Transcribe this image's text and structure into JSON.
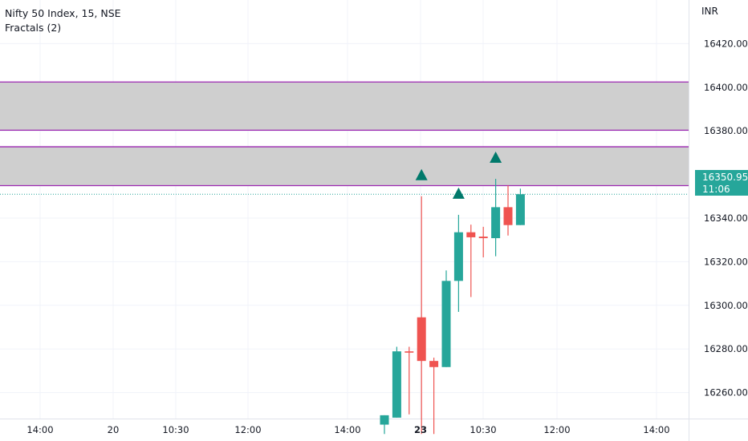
{
  "header": {
    "symbol_line": "Nifty 50 Index, 15, NSE",
    "indicator_line": "Fractals (2)"
  },
  "currency": "INR",
  "last_price_tag": {
    "price": "16350.95",
    "countdown": "11:06"
  },
  "colors": {
    "up": "#26a69a",
    "down": "#ef5350",
    "fractal": "#00796b",
    "zone_fill": "#cccccc",
    "zone_line": "#9c27b0",
    "last_price_line": "#26a69a"
  },
  "chart_data": {
    "type": "candlestick",
    "ylim": [
      16241,
      16437
    ],
    "y_ticks": [
      "16420.00",
      "16400.00",
      "16380.00",
      "16360.00",
      "16340.00",
      "16320.00",
      "16300.00",
      "16280.00",
      "16260.00"
    ],
    "x_ticks": [
      "14:00",
      "20",
      "10:30",
      "12:00",
      "14:00",
      "23",
      "10:30",
      "12:00",
      "14:00"
    ],
    "x_ticks_bold": [
      "23"
    ],
    "zones": [
      {
        "top": 16402.4,
        "bottom": 16380.3
      },
      {
        "top": 16372.7,
        "bottom": 16354.9
      }
    ],
    "last_price": 16350.95,
    "candles": [
      {
        "o": 16245.3,
        "h": 16249.6,
        "l": 16241.0,
        "c": 16249.6
      },
      {
        "o": 16248.5,
        "h": 16281.0,
        "l": 16248.5,
        "c": 16278.9
      },
      {
        "o": 16278.9,
        "h": 16281.0,
        "l": 16250.0,
        "c": 16278.3
      },
      {
        "o": 16294.5,
        "h": 16350.0,
        "l": 16241.0,
        "c": 16274.5
      },
      {
        "o": 16274.5,
        "h": 16276.0,
        "l": 16241.0,
        "c": 16271.7
      },
      {
        "o": 16271.7,
        "h": 16316.0,
        "l": 16271.7,
        "c": 16311.2
      },
      {
        "o": 16311.2,
        "h": 16341.5,
        "l": 16297.0,
        "c": 16333.5
      },
      {
        "o": 16333.5,
        "h": 16337.0,
        "l": 16303.8,
        "c": 16331.2
      },
      {
        "o": 16331.5,
        "h": 16336.0,
        "l": 16322.0,
        "c": 16330.8
      },
      {
        "o": 16330.8,
        "h": 16358.0,
        "l": 16322.5,
        "c": 16345.0
      },
      {
        "o": 16345.0,
        "h": 16355.0,
        "l": 16332.0,
        "c": 16336.8
      },
      {
        "o": 16336.8,
        "h": 16353.5,
        "l": 16336.8,
        "c": 16350.95
      }
    ],
    "fractals": [
      {
        "candle": 3,
        "value": 16350.0
      },
      {
        "candle": 6,
        "value": 16341.5
      },
      {
        "candle": 9,
        "value": 16358.0
      }
    ]
  }
}
